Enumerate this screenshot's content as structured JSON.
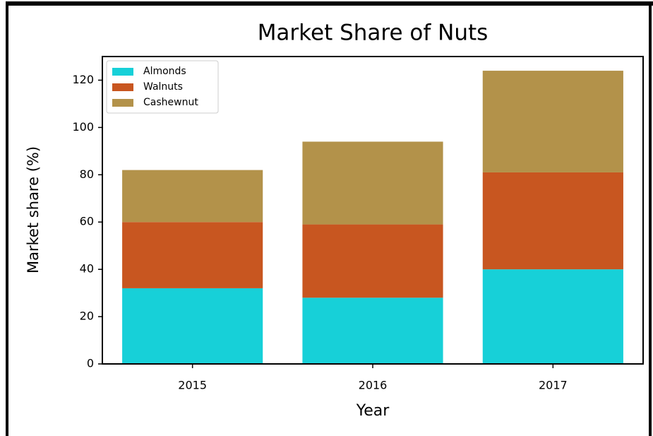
{
  "chart_data": {
    "type": "stacked_bar",
    "title": "Market Share of Nuts",
    "x_label": "Year",
    "y_label": "Market share (%)",
    "categories": [
      "2015",
      "2016",
      "2017"
    ],
    "series": [
      {
        "name": "Almonds",
        "color": "#17d0d8",
        "values": [
          32,
          28,
          40
        ]
      },
      {
        "name": "Walnuts",
        "color": "#c85620",
        "values": [
          28,
          31,
          41
        ]
      },
      {
        "name": "Cashewnut",
        "color": "#b3924a",
        "values": [
          22,
          35,
          43
        ]
      }
    ],
    "ylim": [
      0,
      130
    ],
    "yticks": [
      0,
      20,
      40,
      60,
      80,
      100,
      120
    ],
    "legend": "upper left",
    "grid": false
  }
}
